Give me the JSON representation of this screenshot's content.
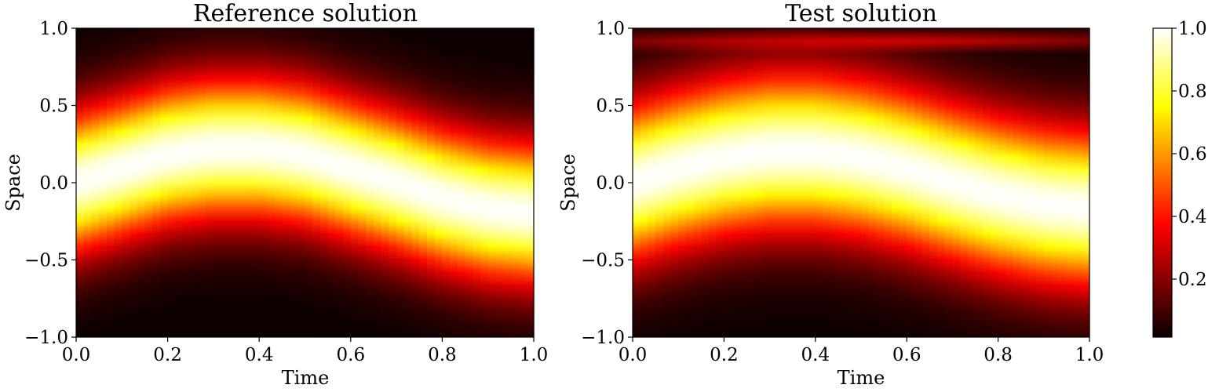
{
  "chart_data": {
    "type": "heatmap",
    "colormap": "hot",
    "colorbar": {
      "range": [
        0.0,
        1.0
      ],
      "ticks": [
        0.2,
        0.4,
        0.6,
        0.8,
        1.0
      ],
      "tick_labels": [
        "0.2",
        "0.4",
        "0.6",
        "0.8",
        "1.0"
      ]
    },
    "panels": [
      {
        "title": "Reference solution",
        "xlabel": "Time",
        "ylabel": "Space",
        "xlim": [
          0.0,
          1.0
        ],
        "ylim": [
          -1.0,
          1.0
        ],
        "xticks": [
          0.0,
          0.2,
          0.4,
          0.6,
          0.8,
          1.0
        ],
        "xtick_labels": [
          "0.0",
          "0.2",
          "0.4",
          "0.6",
          "0.8",
          "1.0"
        ],
        "yticks": [
          -1.0,
          -0.5,
          0.0,
          0.5,
          1.0
        ],
        "ytick_labels": [
          "−1.0",
          "−0.5",
          "0.0",
          "0.5",
          "1.0"
        ],
        "field": {
          "peak_value": 1.0,
          "ridge_center": [
            {
              "t": 0.0,
              "x": 0.0
            },
            {
              "t": 0.1,
              "x": 0.09
            },
            {
              "t": 0.2,
              "x": 0.18
            },
            {
              "t": 0.3,
              "x": 0.22
            },
            {
              "t": 0.4,
              "x": 0.22
            },
            {
              "t": 0.5,
              "x": 0.18
            },
            {
              "t": 0.6,
              "x": 0.09
            },
            {
              "t": 0.7,
              "x": 0.0
            },
            {
              "t": 0.8,
              "x": -0.1
            },
            {
              "t": 0.9,
              "x": -0.17
            },
            {
              "t": 1.0,
              "x": -0.2
            }
          ],
          "half_width": 0.45,
          "top_band": null
        }
      },
      {
        "title": "Test solution",
        "xlabel": "Time",
        "ylabel": "Space",
        "xlim": [
          0.0,
          1.0
        ],
        "ylim": [
          -1.0,
          1.0
        ],
        "xticks": [
          0.0,
          0.2,
          0.4,
          0.6,
          0.8,
          1.0
        ],
        "xtick_labels": [
          "0.0",
          "0.2",
          "0.4",
          "0.6",
          "0.8",
          "1.0"
        ],
        "yticks": [
          -1.0,
          -0.5,
          0.0,
          0.5,
          1.0
        ],
        "ytick_labels": [
          "−1.0",
          "−0.5",
          "0.0",
          "0.5",
          "1.0"
        ],
        "field": {
          "peak_value": 1.0,
          "ridge_center": [
            {
              "t": 0.0,
              "x": 0.0
            },
            {
              "t": 0.1,
              "x": 0.09
            },
            {
              "t": 0.2,
              "x": 0.16
            },
            {
              "t": 0.3,
              "x": 0.2
            },
            {
              "t": 0.4,
              "x": 0.2
            },
            {
              "t": 0.5,
              "x": 0.16
            },
            {
              "t": 0.6,
              "x": 0.09
            },
            {
              "t": 0.7,
              "x": 0.0
            },
            {
              "t": 0.8,
              "x": -0.08
            },
            {
              "t": 0.9,
              "x": -0.14
            },
            {
              "t": 1.0,
              "x": -0.17
            }
          ],
          "half_width": 0.5,
          "top_band": {
            "x": 0.92,
            "value": 0.3
          }
        }
      }
    ]
  }
}
